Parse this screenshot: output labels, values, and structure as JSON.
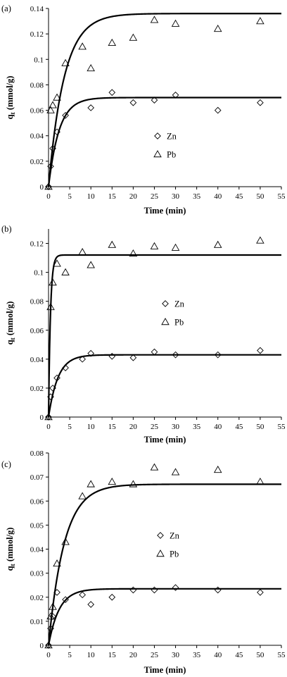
{
  "chart_data": [
    {
      "type": "scatter",
      "panel_label": "(a)",
      "xlabel": "Time (min)",
      "ylabel": "q",
      "ylabel_sub": "t",
      "ylabel_unit": " (mmol/g)",
      "xlim": [
        0,
        55
      ],
      "ylim": [
        0,
        0.14
      ],
      "xticks": [
        0,
        5,
        10,
        15,
        20,
        25,
        30,
        35,
        40,
        45,
        50,
        55
      ],
      "yticks": [
        "0",
        "0.02",
        "0.04",
        "0.06",
        "0.08",
        "0.1",
        "0.12",
        "0.14"
      ],
      "grid": false,
      "legend_position": "center-right",
      "series": [
        {
          "name": "Zn",
          "marker": "diamond",
          "x": [
            0,
            0.5,
            1,
            2,
            4,
            10,
            15,
            20,
            25,
            30,
            40,
            50
          ],
          "y": [
            0,
            0.016,
            0.03,
            0.043,
            0.056,
            0.062,
            0.074,
            0.066,
            0.068,
            0.072,
            0.06,
            0.066
          ],
          "fit": {
            "qe": 0.07,
            "k": 0.4
          }
        },
        {
          "name": "Pb",
          "marker": "triangle",
          "x": [
            0,
            0.5,
            1,
            2,
            4,
            8,
            10,
            15,
            20,
            25,
            30,
            40,
            50
          ],
          "y": [
            0,
            0.06,
            0.064,
            0.07,
            0.097,
            0.11,
            0.093,
            0.113,
            0.117,
            0.131,
            0.128,
            0.124,
            0.13
          ],
          "fit": {
            "qe": 0.136,
            "k": 0.27
          }
        }
      ]
    },
    {
      "type": "scatter",
      "panel_label": "(b)",
      "xlabel": "Time (min)",
      "ylabel": "q",
      "ylabel_sub": "t",
      "ylabel_unit": " (mmol/g)",
      "xlim": [
        0,
        55
      ],
      "ylim": [
        0,
        0.13
      ],
      "xticks": [
        0,
        5,
        10,
        15,
        20,
        25,
        30,
        35,
        40,
        45,
        50,
        55
      ],
      "yticks": [
        "0",
        "0.02",
        "0.04",
        "0.06",
        "0.08",
        "0.1",
        "0.12"
      ],
      "grid": false,
      "legend_position": "center-right",
      "series": [
        {
          "name": "Zn",
          "marker": "diamond",
          "x": [
            0,
            0.5,
            1,
            2,
            4,
            8,
            10,
            15,
            20,
            25,
            30,
            40,
            50
          ],
          "y": [
            0,
            0.014,
            0.02,
            0.027,
            0.034,
            0.04,
            0.044,
            0.042,
            0.041,
            0.045,
            0.043,
            0.043,
            0.046
          ],
          "fit": {
            "qe": 0.043,
            "k": 0.45
          }
        },
        {
          "name": "Pb",
          "marker": "triangle",
          "x": [
            0,
            0.5,
            1,
            2,
            4,
            8,
            10,
            15,
            20,
            25,
            30,
            40,
            50
          ],
          "y": [
            0,
            0.076,
            0.093,
            0.106,
            0.1,
            0.114,
            0.105,
            0.119,
            0.113,
            0.118,
            0.117,
            0.119,
            0.122
          ],
          "fit": {
            "qe": 0.112,
            "k": 2.2
          }
        }
      ]
    },
    {
      "type": "scatter",
      "panel_label": "(c)",
      "xlabel": "Time (min)",
      "ylabel": "q",
      "ylabel_sub": "t",
      "ylabel_unit": " (mmol/g)",
      "xlim": [
        0,
        55
      ],
      "ylim": [
        0,
        0.08
      ],
      "xticks": [
        0,
        5,
        10,
        15,
        20,
        25,
        30,
        35,
        40,
        45,
        50,
        55
      ],
      "yticks": [
        "0",
        "0.01",
        "0.02",
        "0.03",
        "0.04",
        "0.05",
        "0.06",
        "0.07",
        "0.08"
      ],
      "grid": false,
      "legend_position": "center-right",
      "series": [
        {
          "name": "Zn",
          "marker": "diamond",
          "x": [
            0,
            0.5,
            1,
            2,
            4,
            8,
            10,
            15,
            20,
            25,
            30,
            40,
            50
          ],
          "y": [
            0,
            0.007,
            0.012,
            0.022,
            0.019,
            0.021,
            0.017,
            0.02,
            0.023,
            0.023,
            0.024,
            0.023,
            0.022
          ],
          "fit": {
            "qe": 0.0235,
            "k": 0.4
          }
        },
        {
          "name": "Pb",
          "marker": "triangle",
          "x": [
            0,
            0.5,
            1,
            2,
            4,
            8,
            10,
            15,
            20,
            25,
            30,
            40,
            50
          ],
          "y": [
            0,
            0.012,
            0.016,
            0.034,
            0.043,
            0.062,
            0.067,
            0.068,
            0.067,
            0.074,
            0.072,
            0.073,
            0.068
          ],
          "fit": {
            "qe": 0.067,
            "k": 0.27
          }
        }
      ]
    }
  ]
}
